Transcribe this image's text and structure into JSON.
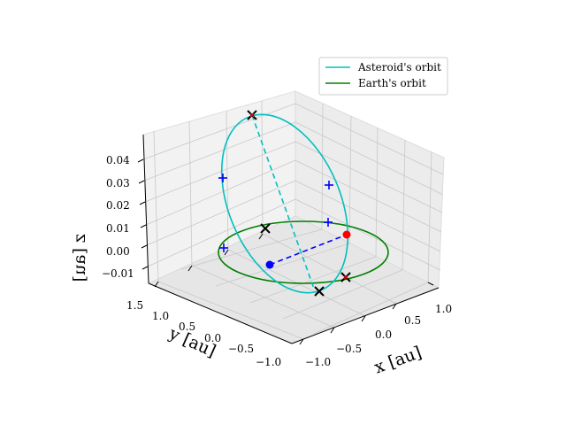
{
  "chart_data": {
    "type": "line",
    "projection": "3d",
    "series": [
      {
        "name": "Asteroid's orbit",
        "color": "#17becf",
        "color_hex": "#00bfbf"
      },
      {
        "name": "Earth's orbit",
        "color": "#008000"
      }
    ],
    "axes": {
      "x": {
        "label": "x [au]",
        "ticks": [
          "−1.0",
          "−0.5",
          "0.0",
          "0.5",
          "1.0"
        ],
        "range": [
          -1.2,
          1.2
        ]
      },
      "y": {
        "label": "y [au]",
        "ticks": [
          "1.5",
          "1.0",
          "0.5",
          "0.0",
          "−0.5",
          "−1.0"
        ],
        "range": [
          -1.2,
          1.6
        ]
      },
      "z": {
        "label": "z [au]",
        "ticks": [
          "0.04",
          "0.03",
          "0.02",
          "0.01",
          "0.00",
          "−0.01"
        ],
        "range": [
          -0.012,
          0.048
        ]
      }
    },
    "markers": {
      "sun_earth": {
        "earth_point": "red-dot",
        "opposite_point": "blue-dot",
        "line": "blue-dashed"
      },
      "asteroid_nodes": {
        "line": "cyan-dashed"
      },
      "crosses": "black-x",
      "plus": "blue-plus"
    },
    "legend": {
      "placement": "upper-right"
    },
    "grid": true
  }
}
